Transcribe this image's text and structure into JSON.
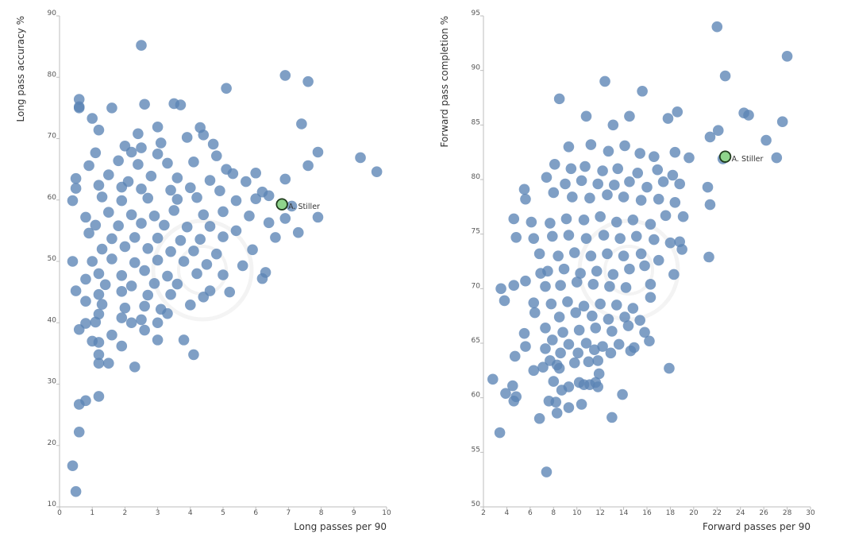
{
  "chart_data": [
    {
      "type": "scatter",
      "xlabel": "Long passes per 90",
      "ylabel": "Long pass accuracy %",
      "xlim": [
        0,
        10
      ],
      "ylim": [
        10,
        90
      ],
      "xticks": [
        0,
        1,
        2,
        3,
        4,
        5,
        6,
        7,
        8,
        9,
        10
      ],
      "yticks": [
        10,
        20,
        30,
        40,
        50,
        60,
        70,
        80,
        90
      ],
      "grid": false,
      "highlight": {
        "label": "A. Stiller",
        "x": 6.8,
        "y": 59.3,
        "color": "#8fd48c"
      },
      "point_color": "#5b84b5",
      "points": [
        [
          2.5,
          85.2
        ],
        [
          6.9,
          80.3
        ],
        [
          7.6,
          79.3
        ],
        [
          5.1,
          78.2
        ],
        [
          0.6,
          76.4
        ],
        [
          0.6,
          75.0
        ],
        [
          0.6,
          75.2
        ],
        [
          1.6,
          75.0
        ],
        [
          2.6,
          75.6
        ],
        [
          3.5,
          75.7
        ],
        [
          3.7,
          75.5
        ],
        [
          1.0,
          73.3
        ],
        [
          7.4,
          72.4
        ],
        [
          1.2,
          71.4
        ],
        [
          2.4,
          70.8
        ],
        [
          3.0,
          71.9
        ],
        [
          4.3,
          71.8
        ],
        [
          4.4,
          70.6
        ],
        [
          2.0,
          68.8
        ],
        [
          2.5,
          68.5
        ],
        [
          3.1,
          69.3
        ],
        [
          4.7,
          69.1
        ],
        [
          3.9,
          70.2
        ],
        [
          1.1,
          67.7
        ],
        [
          2.2,
          67.8
        ],
        [
          3.0,
          67.5
        ],
        [
          4.8,
          67.2
        ],
        [
          7.9,
          67.8
        ],
        [
          9.2,
          66.9
        ],
        [
          9.7,
          64.6
        ],
        [
          0.9,
          65.6
        ],
        [
          1.8,
          66.4
        ],
        [
          2.4,
          65.8
        ],
        [
          3.3,
          66.0
        ],
        [
          4.1,
          66.2
        ],
        [
          5.3,
          64.3
        ],
        [
          6.0,
          64.4
        ],
        [
          6.9,
          63.4
        ],
        [
          7.6,
          65.6
        ],
        [
          0.5,
          63.5
        ],
        [
          1.5,
          64.1
        ],
        [
          2.1,
          63.0
        ],
        [
          2.8,
          63.9
        ],
        [
          3.6,
          63.6
        ],
        [
          4.6,
          63.2
        ],
        [
          5.1,
          65.0
        ],
        [
          5.7,
          63.0
        ],
        [
          0.5,
          61.9
        ],
        [
          1.2,
          62.4
        ],
        [
          1.9,
          62.1
        ],
        [
          2.5,
          61.8
        ],
        [
          3.4,
          61.6
        ],
        [
          4.0,
          62.0
        ],
        [
          4.9,
          61.5
        ],
        [
          6.2,
          61.3
        ],
        [
          6.4,
          60.7
        ],
        [
          0.4,
          59.9
        ],
        [
          1.3,
          60.5
        ],
        [
          1.9,
          59.9
        ],
        [
          2.7,
          60.3
        ],
        [
          3.6,
          60.1
        ],
        [
          4.2,
          60.4
        ],
        [
          5.4,
          59.9
        ],
        [
          6.0,
          60.2
        ],
        [
          6.9,
          57.0
        ],
        [
          7.9,
          57.2
        ],
        [
          0.8,
          57.2
        ],
        [
          1.5,
          58.0
        ],
        [
          2.2,
          57.6
        ],
        [
          2.9,
          57.4
        ],
        [
          3.5,
          58.3
        ],
        [
          4.4,
          57.6
        ],
        [
          5.0,
          58.1
        ],
        [
          5.8,
          57.4
        ],
        [
          6.4,
          56.3
        ],
        [
          7.1,
          59.0
        ],
        [
          1.1,
          55.9
        ],
        [
          1.8,
          55.8
        ],
        [
          2.5,
          56.2
        ],
        [
          3.2,
          55.9
        ],
        [
          3.9,
          55.6
        ],
        [
          4.6,
          55.7
        ],
        [
          5.4,
          55.0
        ],
        [
          7.3,
          54.7
        ],
        [
          0.9,
          54.6
        ],
        [
          1.6,
          53.7
        ],
        [
          2.3,
          53.9
        ],
        [
          3.0,
          53.8
        ],
        [
          3.7,
          53.4
        ],
        [
          4.3,
          53.6
        ],
        [
          5.0,
          54.0
        ],
        [
          6.6,
          53.9
        ],
        [
          1.3,
          52.0
        ],
        [
          2.0,
          52.4
        ],
        [
          2.7,
          52.1
        ],
        [
          3.4,
          51.6
        ],
        [
          4.1,
          51.7
        ],
        [
          4.8,
          51.2
        ],
        [
          5.9,
          51.9
        ],
        [
          0.4,
          50.0
        ],
        [
          1.0,
          50.0
        ],
        [
          1.6,
          50.4
        ],
        [
          2.3,
          49.8
        ],
        [
          3.0,
          50.2
        ],
        [
          3.8,
          50.0
        ],
        [
          4.5,
          49.5
        ],
        [
          5.6,
          49.3
        ],
        [
          1.2,
          48.0
        ],
        [
          1.9,
          47.7
        ],
        [
          2.6,
          48.5
        ],
        [
          3.3,
          47.6
        ],
        [
          4.2,
          48.0
        ],
        [
          5.0,
          47.8
        ],
        [
          6.3,
          48.2
        ],
        [
          0.8,
          47.1
        ],
        [
          1.4,
          46.2
        ],
        [
          2.2,
          46.0
        ],
        [
          2.9,
          46.4
        ],
        [
          3.6,
          46.3
        ],
        [
          4.6,
          45.2
        ],
        [
          5.2,
          45.0
        ],
        [
          6.2,
          47.2
        ],
        [
          0.5,
          45.2
        ],
        [
          1.2,
          44.6
        ],
        [
          1.9,
          45.1
        ],
        [
          2.7,
          44.5
        ],
        [
          3.4,
          44.6
        ],
        [
          4.4,
          44.2
        ],
        [
          0.8,
          43.5
        ],
        [
          1.3,
          43.0
        ],
        [
          2.0,
          42.4
        ],
        [
          2.6,
          42.7
        ],
        [
          3.1,
          42.2
        ],
        [
          4.0,
          42.9
        ],
        [
          1.2,
          41.4
        ],
        [
          1.9,
          40.8
        ],
        [
          2.5,
          40.5
        ],
        [
          3.3,
          41.5
        ],
        [
          0.8,
          39.9
        ],
        [
          1.1,
          40.1
        ],
        [
          2.2,
          40.0
        ],
        [
          3.0,
          40.0
        ],
        [
          0.6,
          38.9
        ],
        [
          1.6,
          38.0
        ],
        [
          2.6,
          38.8
        ],
        [
          1.0,
          37.0
        ],
        [
          1.2,
          36.8
        ],
        [
          1.9,
          36.2
        ],
        [
          3.0,
          37.2
        ],
        [
          3.8,
          37.2
        ],
        [
          1.2,
          34.8
        ],
        [
          1.2,
          33.4
        ],
        [
          1.5,
          33.4
        ],
        [
          2.3,
          32.8
        ],
        [
          4.1,
          34.8
        ],
        [
          1.2,
          28.0
        ],
        [
          0.8,
          27.3
        ],
        [
          0.6,
          26.7
        ],
        [
          0.6,
          22.2
        ],
        [
          0.4,
          16.7
        ],
        [
          0.5,
          12.5
        ]
      ]
    },
    {
      "type": "scatter",
      "xlabel": "Forward passes per 90",
      "ylabel": "Forward pass completion %",
      "xlim": [
        2,
        30
      ],
      "ylim": [
        50,
        95
      ],
      "xticks": [
        2,
        4,
        6,
        8,
        10,
        12,
        14,
        16,
        18,
        20,
        22,
        24,
        26,
        28,
        30
      ],
      "yticks": [
        50,
        55,
        60,
        65,
        70,
        75,
        80,
        85,
        90,
        95
      ],
      "grid": false,
      "highlight": {
        "label": "A. Stiller",
        "x": 22.7,
        "y": 82.1,
        "color": "#8fd48c"
      },
      "point_color": "#5b84b5",
      "points": [
        [
          22.0,
          94.0
        ],
        [
          28.0,
          91.3
        ],
        [
          22.7,
          89.5
        ],
        [
          12.4,
          89.0
        ],
        [
          8.5,
          87.4
        ],
        [
          15.6,
          88.1
        ],
        [
          10.8,
          85.8
        ],
        [
          13.1,
          85.0
        ],
        [
          14.5,
          85.8
        ],
        [
          17.8,
          85.6
        ],
        [
          18.6,
          86.2
        ],
        [
          24.3,
          86.1
        ],
        [
          24.7,
          85.9
        ],
        [
          27.6,
          85.3
        ],
        [
          22.1,
          84.5
        ],
        [
          26.2,
          83.6
        ],
        [
          21.4,
          83.9
        ],
        [
          9.3,
          83.0
        ],
        [
          11.2,
          83.2
        ],
        [
          12.7,
          82.6
        ],
        [
          14.1,
          83.1
        ],
        [
          15.4,
          82.4
        ],
        [
          16.6,
          82.1
        ],
        [
          18.4,
          82.5
        ],
        [
          19.6,
          82.0
        ],
        [
          8.1,
          81.4
        ],
        [
          9.5,
          81.0
        ],
        [
          10.7,
          81.2
        ],
        [
          12.2,
          80.8
        ],
        [
          13.5,
          81.0
        ],
        [
          15.2,
          80.6
        ],
        [
          16.9,
          80.9
        ],
        [
          18.2,
          80.4
        ],
        [
          22.5,
          81.9
        ],
        [
          27.1,
          82.0
        ],
        [
          5.5,
          79.1
        ],
        [
          7.4,
          80.2
        ],
        [
          9.0,
          79.6
        ],
        [
          10.4,
          79.9
        ],
        [
          11.8,
          79.6
        ],
        [
          13.2,
          79.5
        ],
        [
          14.5,
          79.8
        ],
        [
          16.0,
          79.3
        ],
        [
          17.4,
          79.8
        ],
        [
          18.8,
          79.6
        ],
        [
          21.2,
          79.3
        ],
        [
          5.6,
          78.2
        ],
        [
          8.0,
          78.8
        ],
        [
          9.6,
          78.4
        ],
        [
          11.1,
          78.3
        ],
        [
          12.6,
          78.6
        ],
        [
          14.0,
          78.4
        ],
        [
          15.5,
          78.1
        ],
        [
          17.0,
          78.2
        ],
        [
          18.4,
          77.9
        ],
        [
          21.4,
          77.7
        ],
        [
          4.6,
          76.4
        ],
        [
          6.1,
          76.1
        ],
        [
          7.7,
          76.0
        ],
        [
          9.1,
          76.4
        ],
        [
          10.6,
          76.3
        ],
        [
          12.0,
          76.6
        ],
        [
          13.4,
          76.1
        ],
        [
          14.8,
          76.3
        ],
        [
          16.3,
          75.9
        ],
        [
          17.6,
          76.7
        ],
        [
          19.1,
          76.6
        ],
        [
          4.8,
          74.7
        ],
        [
          6.3,
          74.6
        ],
        [
          7.9,
          74.8
        ],
        [
          9.3,
          74.9
        ],
        [
          10.8,
          74.6
        ],
        [
          12.3,
          74.9
        ],
        [
          13.7,
          74.6
        ],
        [
          15.1,
          74.8
        ],
        [
          16.6,
          74.5
        ],
        [
          18.0,
          74.2
        ],
        [
          18.8,
          74.3
        ],
        [
          6.8,
          73.2
        ],
        [
          8.4,
          73.0
        ],
        [
          9.8,
          73.3
        ],
        [
          11.2,
          73.0
        ],
        [
          12.6,
          73.2
        ],
        [
          14.0,
          73.0
        ],
        [
          15.5,
          73.2
        ],
        [
          17.0,
          72.6
        ],
        [
          19.0,
          73.6
        ],
        [
          21.3,
          72.9
        ],
        [
          6.9,
          71.4
        ],
        [
          7.5,
          71.6
        ],
        [
          8.9,
          71.8
        ],
        [
          10.3,
          71.4
        ],
        [
          11.7,
          71.6
        ],
        [
          13.1,
          71.3
        ],
        [
          14.5,
          71.8
        ],
        [
          15.8,
          72.1
        ],
        [
          3.5,
          70.0
        ],
        [
          4.6,
          70.3
        ],
        [
          5.6,
          70.7
        ],
        [
          7.3,
          70.2
        ],
        [
          8.6,
          70.3
        ],
        [
          10.0,
          70.6
        ],
        [
          11.4,
          70.4
        ],
        [
          12.8,
          70.2
        ],
        [
          14.2,
          70.1
        ],
        [
          16.3,
          70.4
        ],
        [
          18.3,
          71.3
        ],
        [
          3.8,
          68.9
        ],
        [
          6.3,
          68.7
        ],
        [
          7.8,
          68.6
        ],
        [
          9.2,
          68.8
        ],
        [
          10.6,
          68.4
        ],
        [
          12.0,
          68.6
        ],
        [
          13.4,
          68.5
        ],
        [
          14.8,
          68.2
        ],
        [
          16.3,
          69.2
        ],
        [
          6.4,
          67.8
        ],
        [
          8.5,
          67.4
        ],
        [
          9.9,
          67.8
        ],
        [
          11.3,
          67.5
        ],
        [
          12.7,
          67.2
        ],
        [
          14.1,
          67.4
        ],
        [
          15.4,
          67.1
        ],
        [
          7.3,
          66.4
        ],
        [
          8.8,
          66.0
        ],
        [
          10.2,
          66.2
        ],
        [
          11.6,
          66.4
        ],
        [
          13.0,
          66.1
        ],
        [
          14.4,
          66.6
        ],
        [
          15.8,
          66.0
        ],
        [
          5.5,
          65.9
        ],
        [
          7.9,
          65.3
        ],
        [
          9.3,
          64.9
        ],
        [
          10.8,
          65.0
        ],
        [
          12.2,
          64.7
        ],
        [
          13.6,
          64.9
        ],
        [
          14.9,
          64.6
        ],
        [
          16.2,
          65.2
        ],
        [
          5.6,
          64.7
        ],
        [
          7.3,
          64.5
        ],
        [
          8.6,
          64.1
        ],
        [
          10.1,
          64.1
        ],
        [
          11.5,
          64.4
        ],
        [
          12.9,
          64.1
        ],
        [
          14.6,
          64.3
        ],
        [
          4.7,
          63.8
        ],
        [
          7.7,
          63.4
        ],
        [
          9.8,
          63.2
        ],
        [
          11.0,
          63.3
        ],
        [
          11.8,
          63.4
        ],
        [
          8.3,
          63.0
        ],
        [
          6.3,
          62.5
        ],
        [
          7.1,
          62.8
        ],
        [
          8.5,
          62.7
        ],
        [
          11.9,
          62.2
        ],
        [
          17.9,
          62.7
        ],
        [
          10.2,
          61.4
        ],
        [
          11.1,
          61.2
        ],
        [
          11.6,
          61.4
        ],
        [
          2.8,
          61.7
        ],
        [
          4.5,
          61.1
        ],
        [
          8.0,
          61.5
        ],
        [
          9.3,
          61.0
        ],
        [
          10.6,
          61.2
        ],
        [
          3.9,
          60.4
        ],
        [
          4.8,
          60.1
        ],
        [
          8.7,
          60.7
        ],
        [
          11.8,
          61.0
        ],
        [
          13.9,
          60.3
        ],
        [
          4.6,
          59.7
        ],
        [
          7.6,
          59.7
        ],
        [
          8.2,
          59.6
        ],
        [
          9.3,
          59.1
        ],
        [
          10.4,
          59.4
        ],
        [
          6.8,
          58.1
        ],
        [
          8.3,
          58.6
        ],
        [
          13.0,
          58.2
        ],
        [
          3.4,
          56.8
        ],
        [
          7.4,
          53.2
        ]
      ]
    }
  ]
}
